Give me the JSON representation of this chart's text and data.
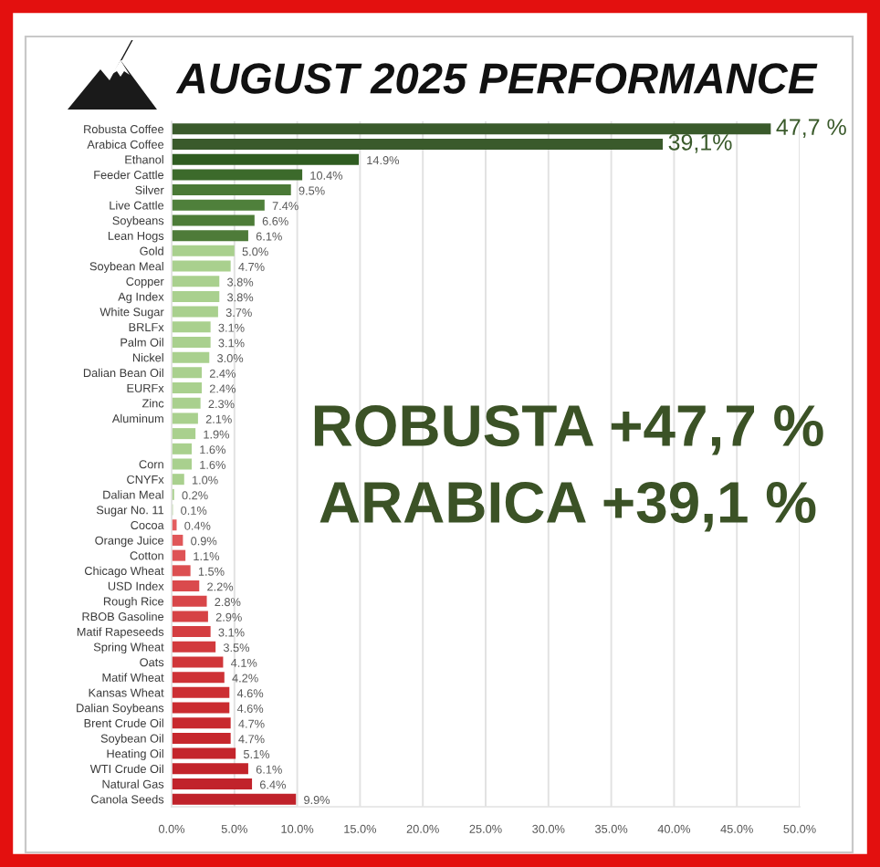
{
  "chart_data": {
    "type": "bar",
    "orientation": "horizontal",
    "title": "AUGUST 2025 PERFORMANCE",
    "categories": [
      "Robusta Coffee",
      "Arabica Coffee",
      "Ethanol",
      "Feeder Cattle",
      "Silver",
      "Live Cattle",
      "Soybeans",
      "Lean Hogs",
      "Gold",
      "Soybean Meal",
      "Copper",
      "Ag Index",
      "White Sugar",
      "BRLFx",
      "Palm Oil",
      "Nickel",
      "Dalian Bean Oil",
      "EURFx",
      "Zinc",
      "Aluminum",
      null,
      null,
      "Corn",
      "CNYFx",
      "Dalian Meal",
      "Sugar No. 11",
      "Cocoa",
      "Orange Juice",
      "Cotton",
      "Chicago Wheat",
      "USD Index",
      "Rough Rice",
      "RBOB Gasoline",
      "Matif Rapeseeds",
      "Spring Wheat",
      "Oats",
      "Matif Wheat",
      "Kansas Wheat",
      "Dalian Soybeans",
      "Brent Crude Oil",
      "Soybean Oil",
      "Heating Oil",
      "WTI Crude Oil",
      "Natural Gas",
      "Canola Seeds"
    ],
    "values": [
      47.7,
      39.1,
      14.9,
      10.4,
      9.5,
      7.4,
      6.6,
      6.1,
      5.0,
      4.7,
      3.8,
      3.8,
      3.7,
      3.1,
      3.1,
      3.0,
      2.4,
      2.4,
      2.3,
      2.1,
      1.9,
      1.6,
      1.6,
      1.0,
      0.2,
      0.1,
      0.4,
      0.9,
      1.1,
      1.5,
      2.2,
      2.8,
      2.9,
      3.1,
      3.5,
      4.1,
      4.2,
      4.6,
      4.6,
      4.7,
      4.7,
      5.1,
      6.1,
      6.4,
      9.9
    ],
    "colors": [
      "#3a5a2b",
      "#3a5a2b",
      "#2f5c21",
      "#3c6a2b",
      "#4a7936",
      "#4f803b",
      "#4d7c38",
      "#4e7b39",
      "#a9d08e",
      "#a9d08e",
      "#a9d08e",
      "#a9d08e",
      "#a9d08e",
      "#a9d08e",
      "#a9d08e",
      "#a9d08e",
      "#a9d08e",
      "#a9d08e",
      "#a9d08e",
      "#a9d08e",
      "#a9d08e",
      "#a9d08e",
      "#a9d08e",
      "#a9d08e",
      "#a9d08e",
      "#a9d08e",
      "#e35d5f",
      "#e05759",
      "#de5355",
      "#dc4f51",
      "#da4a4d",
      "#d84649",
      "#d64245",
      "#d43e41",
      "#d23a3d",
      "#d03639",
      "#ce3236",
      "#cc2f33",
      "#ca2c30",
      "#c8292e",
      "#c6272d",
      "#c4252c",
      "#c2242b",
      "#c1232b",
      "#c0222a"
    ],
    "value_labels": [
      null,
      null,
      "14.9%",
      "10.4%",
      "9.5%",
      "7.4%",
      "6.6%",
      "6.1%",
      "5.0%",
      "4.7%",
      "3.8%",
      "3.8%",
      "3.7%",
      "3.1%",
      "3.1%",
      "3.0%",
      "2.4%",
      "2.4%",
      "2.3%",
      "2.1%",
      "1.9%",
      "1.6%",
      "1.6%",
      "1.0%",
      "0.2%",
      "0.1%",
      "0.4%",
      "0.9%",
      "1.1%",
      "1.5%",
      "2.2%",
      "2.8%",
      "2.9%",
      "3.1%",
      "3.5%",
      "4.1%",
      "4.2%",
      "4.6%",
      "4.6%",
      "4.7%",
      "4.7%",
      "5.1%",
      "6.1%",
      "6.4%",
      "9.9%"
    ],
    "xlim": [
      0,
      50
    ],
    "xticks": [
      {
        "value": 0,
        "label": "0.0%"
      },
      {
        "value": 5,
        "label": "5.0%"
      },
      {
        "value": 10,
        "label": "10.0%"
      },
      {
        "value": 15,
        "label": "15.0%"
      },
      {
        "value": 20,
        "label": "20.0%"
      },
      {
        "value": 25,
        "label": "25.0%"
      },
      {
        "value": 30,
        "label": "30.0%"
      },
      {
        "value": 35,
        "label": "35.0%"
      },
      {
        "value": 40,
        "label": "40.0%"
      },
      {
        "value": 45,
        "label": "45.0%"
      },
      {
        "value": 50,
        "label": "50.0%"
      }
    ],
    "grid": "x",
    "annotations": [
      "ROBUSTA +47,7 %",
      "ARABICA +39,1 %",
      {
        "text": "47,7 %",
        "x": 47.7,
        "y": "Robusta Coffee"
      },
      {
        "text": "39,1%",
        "x": 39.1,
        "y": "Arabica Coffee"
      }
    ]
  }
}
